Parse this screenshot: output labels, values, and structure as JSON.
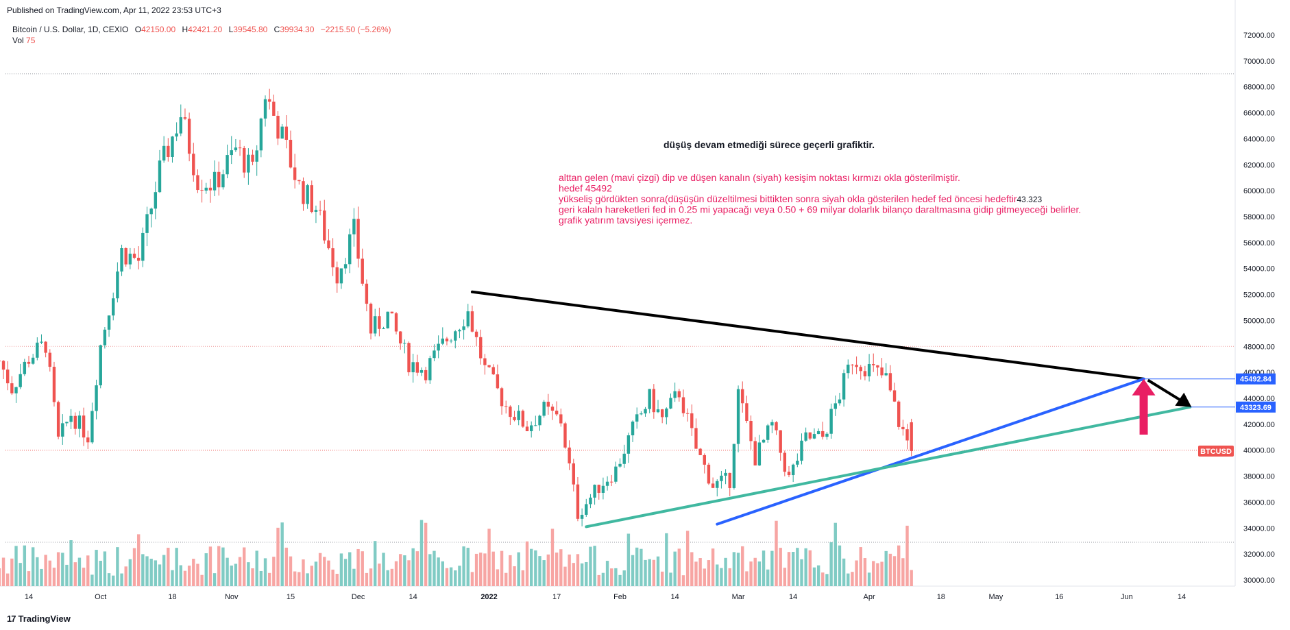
{
  "header": {
    "published": "Published on TradingView.com, Apr 11, 2022 23:53 UTC+3"
  },
  "legend": {
    "symbol": "Bitcoin / U.S. Dollar, 1D, CEXIO",
    "open_label": "O",
    "open": "42150.00",
    "high_label": "H",
    "high": "42421.20",
    "low_label": "L",
    "low": "39545.80",
    "close_label": "C",
    "close": "39934.30",
    "change": "−2215.50 (−5.26%)",
    "vol_label": "Vol",
    "vol": "75"
  },
  "brand": {
    "logo": "17",
    "name": "TradingView"
  },
  "colors": {
    "up": "#26a69a",
    "down": "#ef5350",
    "up_vol": "#80cbc4",
    "down_vol": "#f7a5a3",
    "trend_black": "#000000",
    "trend_blue": "#2962ff",
    "trend_teal": "#40b8a0",
    "arrow_pink": "#e91e63",
    "annotation": "#e91e63",
    "axis_text": "#131722"
  },
  "annotations": {
    "headline": "düşüş devam etmediği sürece geçerli grafiktir.",
    "lines": [
      "alttan gelen (mavi çizgi) dip ve düşen kanalın (siyah) kesişim noktası kırmızı okla gösterilmiştir.",
      "hedef 45492",
      "yükseliş gördükten sonra(düşüşün düzeltilmesi bittikten sonra siyah okla gösterilen hedef fed öncesi hedeftir",
      "geri kalaln hareketleri fed in 0.25 mi yapacağı veya 0.50 + 69 milyar dolarlık bilanço daraltmasına gidip gitmeyeceği belirler.",
      "grafik yatırım tavsiyesi içermez."
    ],
    "inline_value": "43.323"
  },
  "price_tags": [
    {
      "label": "45492.84",
      "price": 45492.84,
      "color": "#2962ff"
    },
    {
      "label": "43323.69",
      "price": 43323.69,
      "color": "#2962ff"
    },
    {
      "label": "BTCUSD",
      "price": 39934.3,
      "color": "#ef5350"
    }
  ],
  "chart_data": {
    "type": "candlestick",
    "symbol": "BTCUSD",
    "timeframe": "1D",
    "ylim": [
      29500,
      72800
    ],
    "y_ticks": [
      "72000.00",
      "70000.00",
      "68000.00",
      "66000.00",
      "64000.00",
      "62000.00",
      "60000.00",
      "58000.00",
      "56000.00",
      "54000.00",
      "52000.00",
      "50000.00",
      "48000.00",
      "46000.00",
      "44000.00",
      "42000.00",
      "40000.00",
      "38000.00",
      "36000.00",
      "34000.00",
      "32000.00",
      "30000.00"
    ],
    "x_ticks": [
      "14",
      "Oct",
      "18",
      "Nov",
      "15",
      "Dec",
      "14",
      "2022",
      "17",
      "Feb",
      "14",
      "Mar",
      "14",
      "Apr",
      "18",
      "May",
      "16",
      "Jun",
      "14"
    ],
    "horizontal_levels": [
      69000,
      48000,
      40000
    ],
    "close_series": [
      {
        "date": "2021-09-07",
        "close": 46900
      },
      {
        "date": "2021-09-10",
        "close": 44800
      },
      {
        "date": "2021-09-14",
        "close": 47100
      },
      {
        "date": "2021-09-18",
        "close": 48200
      },
      {
        "date": "2021-09-21",
        "close": 40700
      },
      {
        "date": "2021-09-24",
        "close": 42800
      },
      {
        "date": "2021-09-28",
        "close": 41100
      },
      {
        "date": "2021-10-01",
        "close": 48100
      },
      {
        "date": "2021-10-06",
        "close": 55300
      },
      {
        "date": "2021-10-10",
        "close": 54600
      },
      {
        "date": "2021-10-15",
        "close": 61500
      },
      {
        "date": "2021-10-20",
        "close": 65900
      },
      {
        "date": "2021-10-24",
        "close": 60900
      },
      {
        "date": "2021-10-28",
        "close": 60500
      },
      {
        "date": "2021-11-02",
        "close": 63200
      },
      {
        "date": "2021-11-06",
        "close": 61400
      },
      {
        "date": "2021-11-09",
        "close": 67500
      },
      {
        "date": "2021-11-13",
        "close": 64100
      },
      {
        "date": "2021-11-17",
        "close": 60300
      },
      {
        "date": "2021-11-21",
        "close": 58700
      },
      {
        "date": "2021-11-26",
        "close": 53600
      },
      {
        "date": "2021-11-30",
        "close": 56900
      },
      {
        "date": "2021-12-04",
        "close": 49200
      },
      {
        "date": "2021-12-08",
        "close": 50400
      },
      {
        "date": "2021-12-13",
        "close": 46800
      },
      {
        "date": "2021-12-17",
        "close": 46200
      },
      {
        "date": "2021-12-22",
        "close": 48600
      },
      {
        "date": "2021-12-27",
        "close": 50700
      },
      {
        "date": "2021-12-31",
        "close": 46200
      },
      {
        "date": "2022-01-05",
        "close": 43400
      },
      {
        "date": "2022-01-10",
        "close": 41800
      },
      {
        "date": "2022-01-14",
        "close": 43100
      },
      {
        "date": "2022-01-18",
        "close": 42300
      },
      {
        "date": "2022-01-22",
        "close": 35100
      },
      {
        "date": "2022-01-27",
        "close": 37200
      },
      {
        "date": "2022-01-31",
        "close": 38500
      },
      {
        "date": "2022-02-04",
        "close": 41600
      },
      {
        "date": "2022-02-08",
        "close": 44000
      },
      {
        "date": "2022-02-11",
        "close": 42400
      },
      {
        "date": "2022-02-15",
        "close": 44500
      },
      {
        "date": "2022-02-19",
        "close": 40100
      },
      {
        "date": "2022-02-23",
        "close": 37300
      },
      {
        "date": "2022-02-27",
        "close": 37700
      },
      {
        "date": "2022-03-01",
        "close": 44400
      },
      {
        "date": "2022-03-05",
        "close": 39400
      },
      {
        "date": "2022-03-09",
        "close": 41900
      },
      {
        "date": "2022-03-13",
        "close": 37800
      },
      {
        "date": "2022-03-17",
        "close": 40900
      },
      {
        "date": "2022-03-21",
        "close": 41000
      },
      {
        "date": "2022-03-25",
        "close": 44300
      },
      {
        "date": "2022-03-28",
        "close": 47100
      },
      {
        "date": "2022-04-01",
        "close": 46300
      },
      {
        "date": "2022-04-05",
        "close": 45500
      },
      {
        "date": "2022-04-08",
        "close": 42200
      },
      {
        "date": "2022-04-11",
        "close": 39934
      }
    ],
    "trendlines": [
      {
        "name": "siyah",
        "color": "#000000",
        "from": {
          "date": "2021-12-28",
          "price": 52200
        },
        "to": {
          "date": "2022-06-05",
          "price": 45493
        }
      },
      {
        "name": "mavi",
        "color": "#2962ff",
        "from": {
          "date": "2022-02-24",
          "price": 34300
        },
        "to": {
          "date": "2022-06-05",
          "price": 45493
        }
      },
      {
        "name": "teal",
        "color": "#40b8a0",
        "from": {
          "date": "2022-01-24",
          "price": 34100
        },
        "to": {
          "date": "2022-06-16",
          "price": 43324
        }
      }
    ],
    "targets": [
      45492.84,
      43323.69
    ]
  }
}
